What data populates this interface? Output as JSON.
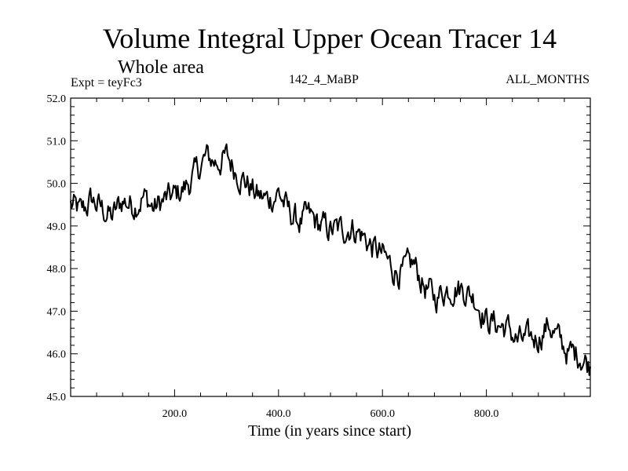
{
  "chart_data": {
    "type": "line",
    "title": "Volume Integral Upper Ocean Tracer 14",
    "subtitle": "Whole area",
    "annotations": {
      "experiment": "Expt = teyFc3",
      "run_id": "142_4_MaBP",
      "months": "ALL_MONTHS"
    },
    "xlabel": "Time (in years since start)",
    "ylabel": "",
    "xlim": [
      0,
      1000
    ],
    "ylim": [
      45.0,
      52.0
    ],
    "x_ticks": [
      200,
      400,
      600,
      800
    ],
    "x_tick_labels": [
      "200.0",
      "400.0",
      "600.0",
      "800.0"
    ],
    "y_ticks": [
      45,
      46,
      47,
      48,
      49,
      50,
      51,
      52
    ],
    "y_tick_labels": [
      "45.0",
      "46.0",
      "47.0",
      "48.0",
      "49.0",
      "50.0",
      "51.0",
      "52.0"
    ],
    "grid": false,
    "series": [
      {
        "name": "Tracer 14",
        "color": "#000000",
        "x": [
          0,
          20,
          40,
          60,
          80,
          100,
          120,
          140,
          160,
          180,
          200,
          220,
          240,
          260,
          280,
          300,
          320,
          340,
          360,
          380,
          400,
          420,
          440,
          460,
          480,
          500,
          520,
          540,
          560,
          580,
          600,
          620,
          640,
          660,
          680,
          700,
          720,
          740,
          760,
          780,
          800,
          820,
          840,
          860,
          880,
          900,
          920,
          940,
          960,
          980,
          1000
        ],
        "values": [
          49.5,
          49.3,
          49.6,
          49.4,
          49.2,
          49.6,
          49.5,
          49.7,
          49.4,
          49.6,
          49.7,
          49.9,
          50.2,
          50.6,
          50.5,
          50.6,
          50.3,
          50.0,
          49.7,
          49.6,
          49.8,
          49.3,
          49.1,
          49.2,
          49.0,
          48.9,
          48.9,
          49.0,
          48.8,
          48.5,
          48.3,
          48.0,
          47.9,
          48.1,
          47.6,
          47.3,
          47.5,
          47.6,
          47.5,
          47.3,
          46.8,
          46.7,
          46.6,
          46.3,
          46.3,
          46.4,
          46.7,
          46.3,
          46.0,
          46.0,
          45.7
        ]
      }
    ]
  }
}
